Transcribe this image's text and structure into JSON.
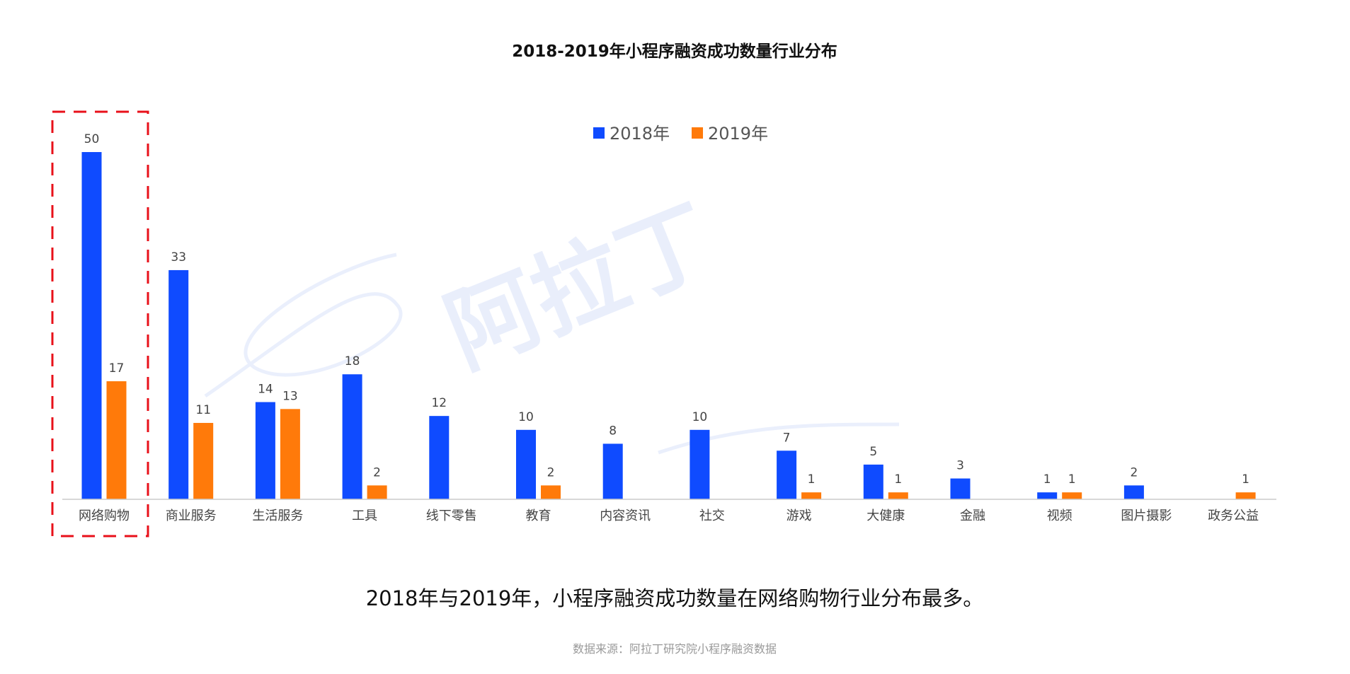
{
  "chart_data": {
    "type": "bar",
    "title": "2018-2019年小程序融资成功数量行业分布",
    "categories": [
      "网络购物",
      "商业服务",
      "生活服务",
      "工具",
      "线下零售",
      "教育",
      "内容资讯",
      "社交",
      "游戏",
      "大健康",
      "金融",
      "视频",
      "图片摄影",
      "政务公益"
    ],
    "series": [
      {
        "name": "2018年",
        "color": "#0f4bff",
        "values": [
          50,
          33,
          14,
          18,
          12,
          10,
          8,
          10,
          7,
          5,
          3,
          1,
          2,
          null
        ]
      },
      {
        "name": "2019年",
        "color": "#ff7a0a",
        "values": [
          17,
          11,
          13,
          2,
          null,
          2,
          null,
          null,
          1,
          1,
          null,
          1,
          null,
          1
        ]
      }
    ],
    "ylim": [
      0,
      50
    ],
    "grid": false,
    "legend_position": "top-center",
    "highlight_category": "网络购物"
  },
  "watermark": "阿拉丁",
  "caption": "2018年与2019年，小程序融资成功数量在网络购物行业分布最多。",
  "source": "数据来源：阿拉丁研究院小程序融资数据",
  "colors": {
    "axis": "#cccccc",
    "highlight_box": "#e8101a"
  }
}
